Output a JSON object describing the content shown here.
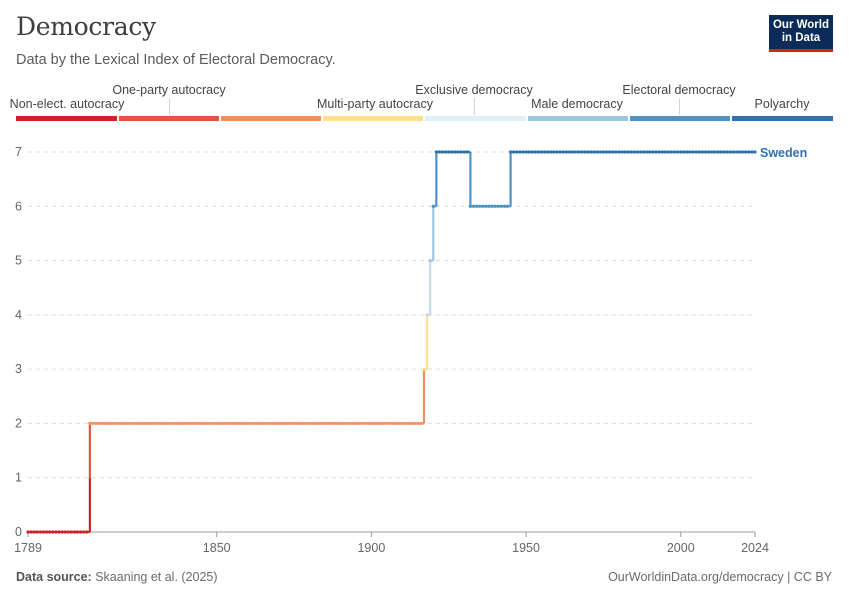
{
  "header": {
    "title": "Democracy",
    "subtitle": "Data by the Lexical Index of Electoral Democracy.",
    "logo_line1": "Our World",
    "logo_line2": "in Data"
  },
  "legend": [
    {
      "label": "Non-elect. autocracy",
      "color": "#d2202a"
    },
    {
      "label": "One-party autocracy",
      "color": "#e8533f"
    },
    {
      "label": "Multi-party autocracy",
      "color": "#f4915a"
    },
    {
      "label": "Exclusive democracy",
      "color": "#fde08b"
    },
    {
      "label": "Male democracy",
      "color": "#e1f0f8"
    },
    {
      "label": "Electoral democracy",
      "color": "#99c8df"
    },
    {
      "label": "Polyarchy",
      "color": "#4f93c5"
    },
    {
      "label": "",
      "color": "#2f72b0"
    }
  ],
  "footer": {
    "source_label": "Data source:",
    "source_text": "Skaaning et al. (2025)",
    "credit": "OurWorldinData.org/democracy | CC BY"
  },
  "chart_data": {
    "type": "line",
    "title": "Democracy",
    "xlabel": "",
    "ylabel": "",
    "xlim": [
      1789,
      2024
    ],
    "ylim": [
      0,
      7
    ],
    "x_ticks": [
      1789,
      1850,
      1900,
      1950,
      2000,
      2024
    ],
    "y_ticks": [
      0,
      1,
      2,
      3,
      4,
      5,
      6,
      7
    ],
    "grid": "horizontal dashed",
    "series": [
      {
        "name": "Sweden",
        "color": "#2f72b0",
        "segments": [
          {
            "from": 1789,
            "to": 1808,
            "value": 0
          },
          {
            "from": 1809,
            "to": 1916,
            "value": 2
          },
          {
            "from": 1917,
            "to": 1917,
            "value": 3
          },
          {
            "from": 1918,
            "to": 1918,
            "value": 4
          },
          {
            "from": 1919,
            "to": 1919,
            "value": 5
          },
          {
            "from": 1920,
            "to": 1920,
            "value": 6
          },
          {
            "from": 1921,
            "to": 1931,
            "value": 7
          },
          {
            "from": 1932,
            "to": 1944,
            "value": 6
          },
          {
            "from": 1945,
            "to": 2024,
            "value": 7
          }
        ]
      }
    ],
    "value_colors": [
      "#d2202a",
      "#e8533f",
      "#f4915a",
      "#fde08b",
      "#c8dbe6",
      "#99c8df",
      "#4f93c5",
      "#2f72b0"
    ]
  }
}
